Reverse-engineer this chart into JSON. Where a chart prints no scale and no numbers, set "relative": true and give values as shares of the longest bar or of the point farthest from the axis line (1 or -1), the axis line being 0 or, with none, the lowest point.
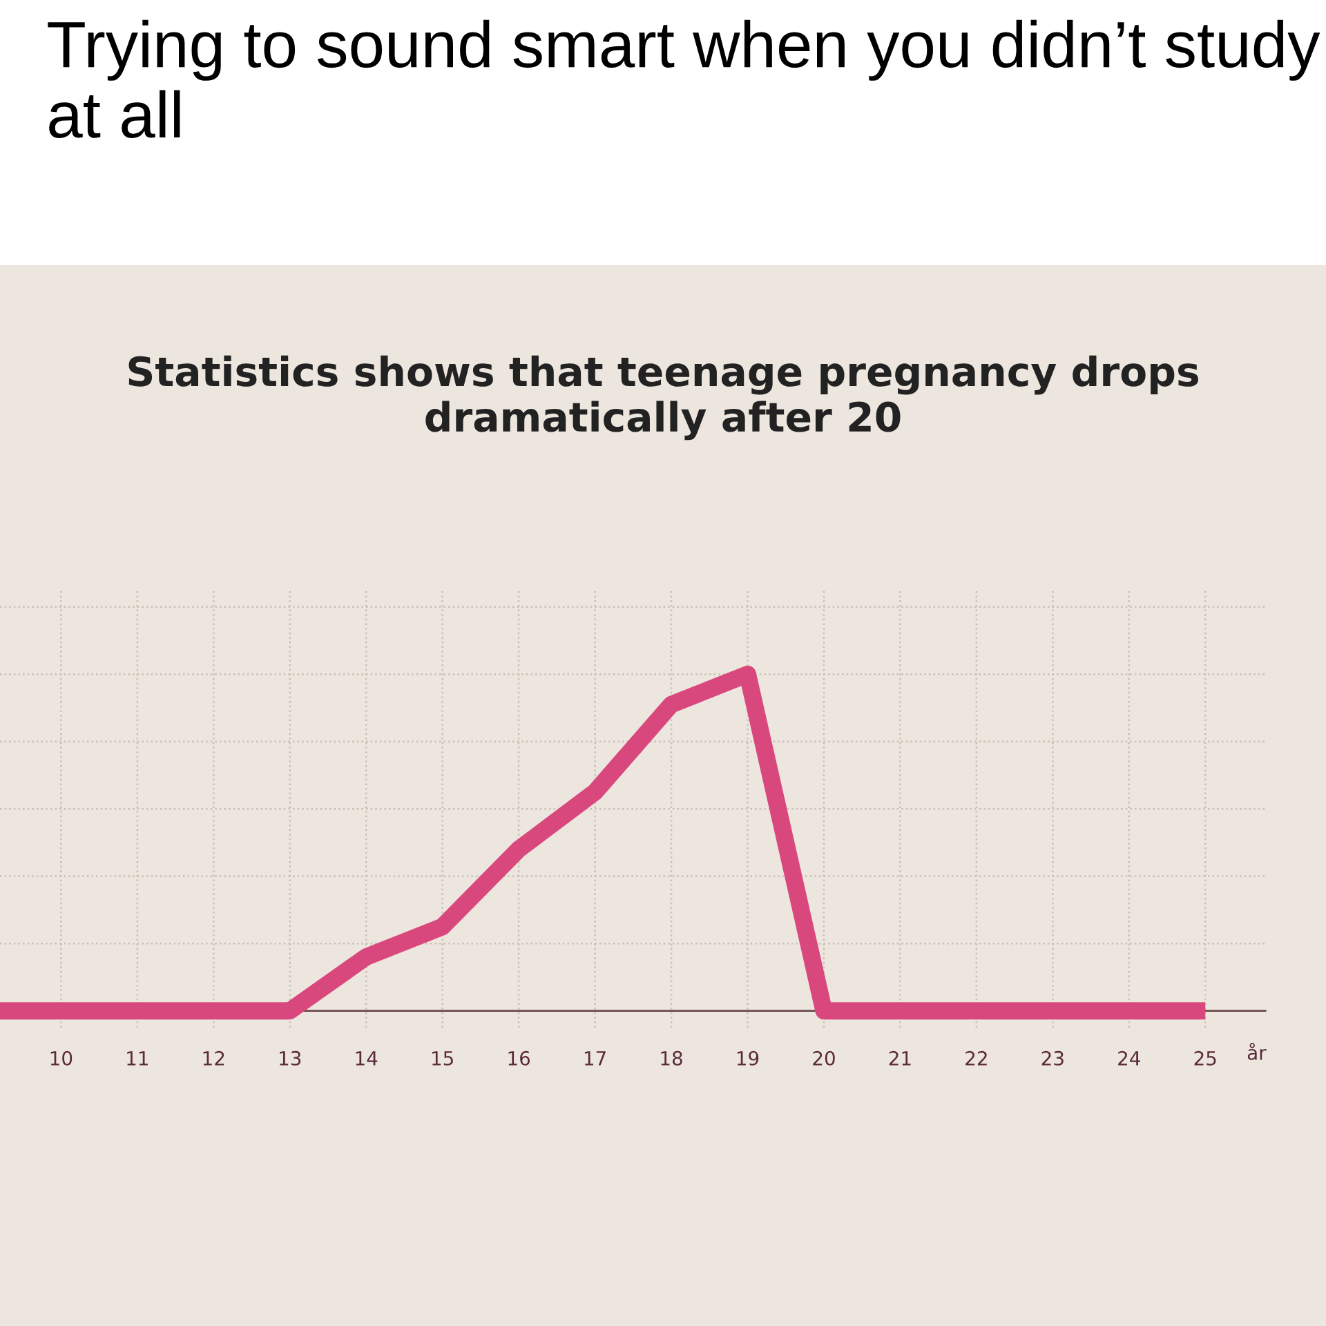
{
  "chart_data": {
    "type": "line",
    "title": "Trying to sound smart when you didn’t study at all",
    "subtitle": "Statistics shows that teenage pregnancy drops dramatically after 20",
    "xlabel": "år",
    "relative": true,
    "x": [
      9.2,
      10,
      11,
      12,
      13,
      14,
      15,
      16,
      17,
      18,
      19,
      20,
      21,
      22,
      23,
      24,
      25
    ],
    "series": [
      {
        "color": "#d9487d",
        "values": [
          0,
          0,
          0,
          0,
          0,
          0.16,
          0.25,
          0.48,
          0.65,
          0.91,
          1,
          0,
          0,
          0,
          0,
          0,
          0
        ]
      }
    ],
    "xlim": [
      9.2,
      25.8
    ],
    "xticks": [
      10,
      11,
      12,
      13,
      14,
      15,
      16,
      17,
      18,
      19,
      20,
      21,
      22,
      23,
      24,
      25
    ],
    "grid": true,
    "legend": false,
    "marker": "none",
    "line_style": "solid"
  }
}
